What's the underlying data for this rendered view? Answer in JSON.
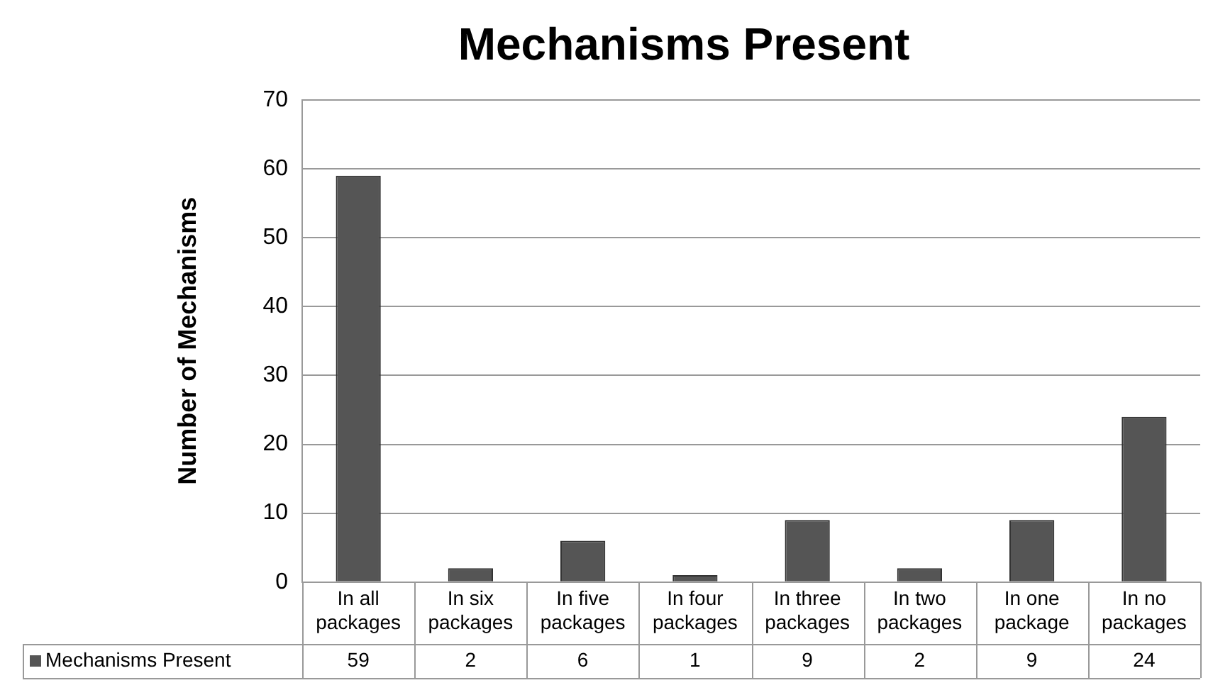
{
  "chart_data": {
    "type": "bar",
    "title": "Mechanisms Present",
    "ylabel": "Number of Mechanisms",
    "categories": [
      "In all packages",
      "In six packages",
      "In five packages",
      "In four packages",
      "In three packages",
      "In two packages",
      "In one package",
      "In no packages"
    ],
    "series": [
      {
        "name": "Mechanisms Present",
        "color": "#555555",
        "values": [
          59,
          2,
          6,
          1,
          9,
          2,
          9,
          24
        ]
      }
    ],
    "ylim": [
      0,
      70
    ],
    "yticks": [
      0,
      10,
      20,
      30,
      40,
      50,
      60,
      70
    ],
    "grid": "y",
    "data_labels": true
  }
}
